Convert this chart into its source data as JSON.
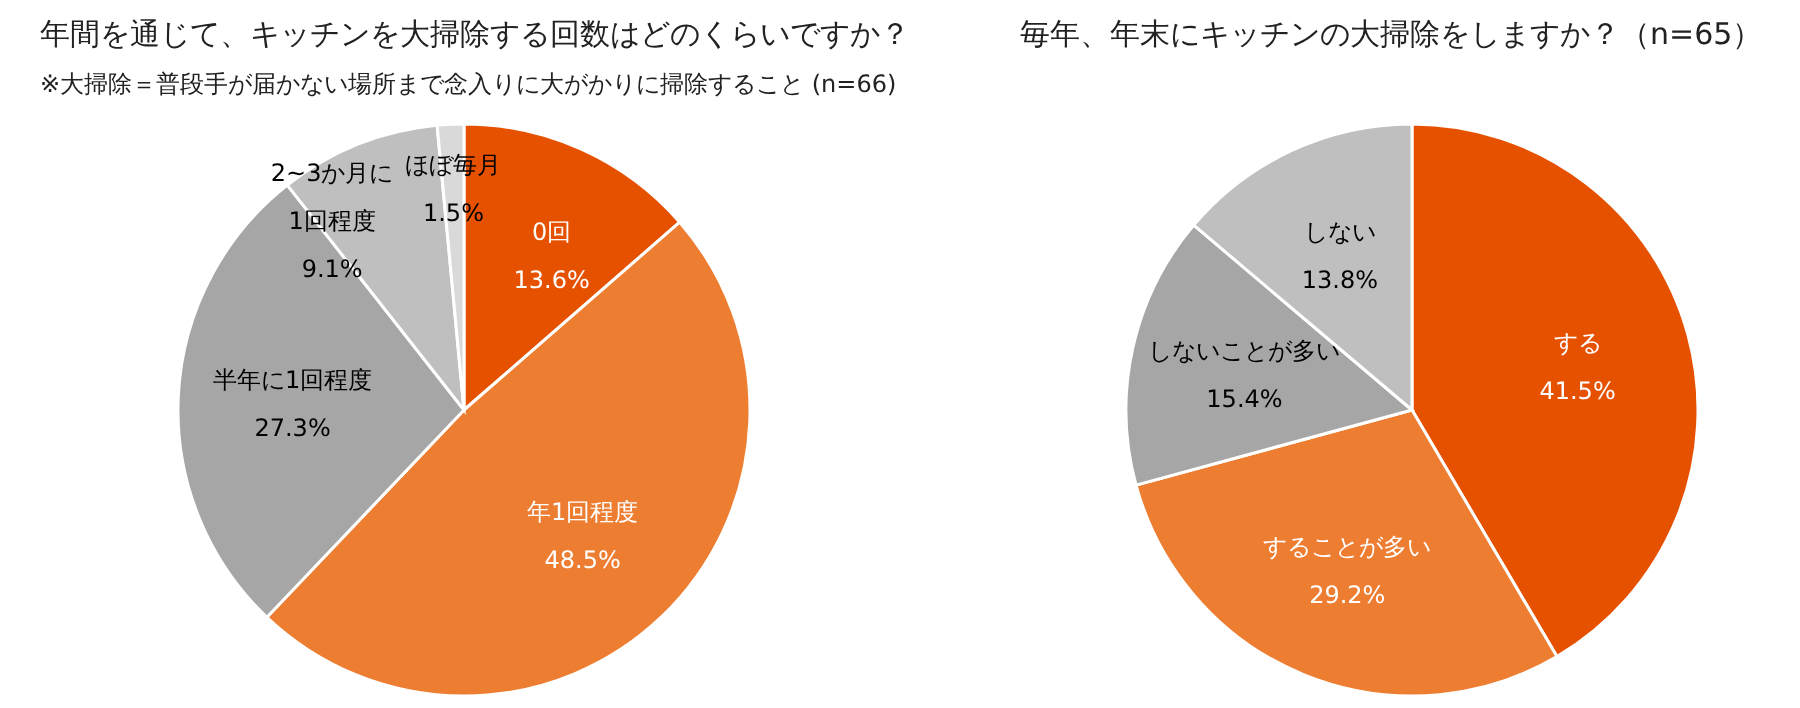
{
  "chart_data": [
    {
      "type": "pie",
      "title": "年間を通じて、キッチンを大掃除する回数はどのくらいですか？",
      "subtitle": "※大掃除＝普段手が届かない場所まで念入りに大がかりに掃除すること (n=66)",
      "categories": [
        "0回",
        "年1回程度",
        "半年に1回程度",
        "2~3か月に1回程度",
        "ほぼ毎月"
      ],
      "values": [
        13.6,
        48.5,
        27.3,
        9.1,
        1.5
      ],
      "value_labels": [
        "13.6%",
        "48.5%",
        "27.3%",
        "9.1%",
        "1.5%"
      ],
      "colors": [
        "#e65100",
        "#ed7d31",
        "#a6a6a6",
        "#bfbfbf",
        "#d9d9d9"
      ]
    },
    {
      "type": "pie",
      "title": "毎年、年末にキッチンの大掃除をしますか？（n=65）",
      "categories": [
        "する",
        "することが多い",
        "しないことが多い",
        "しない"
      ],
      "values": [
        41.5,
        29.2,
        15.4,
        13.8
      ],
      "value_labels": [
        "41.5%",
        "29.2%",
        "15.4%",
        "13.8%"
      ],
      "colors": [
        "#e65100",
        "#ed7d31",
        "#a6a6a6",
        "#bfbfbf"
      ]
    }
  ]
}
